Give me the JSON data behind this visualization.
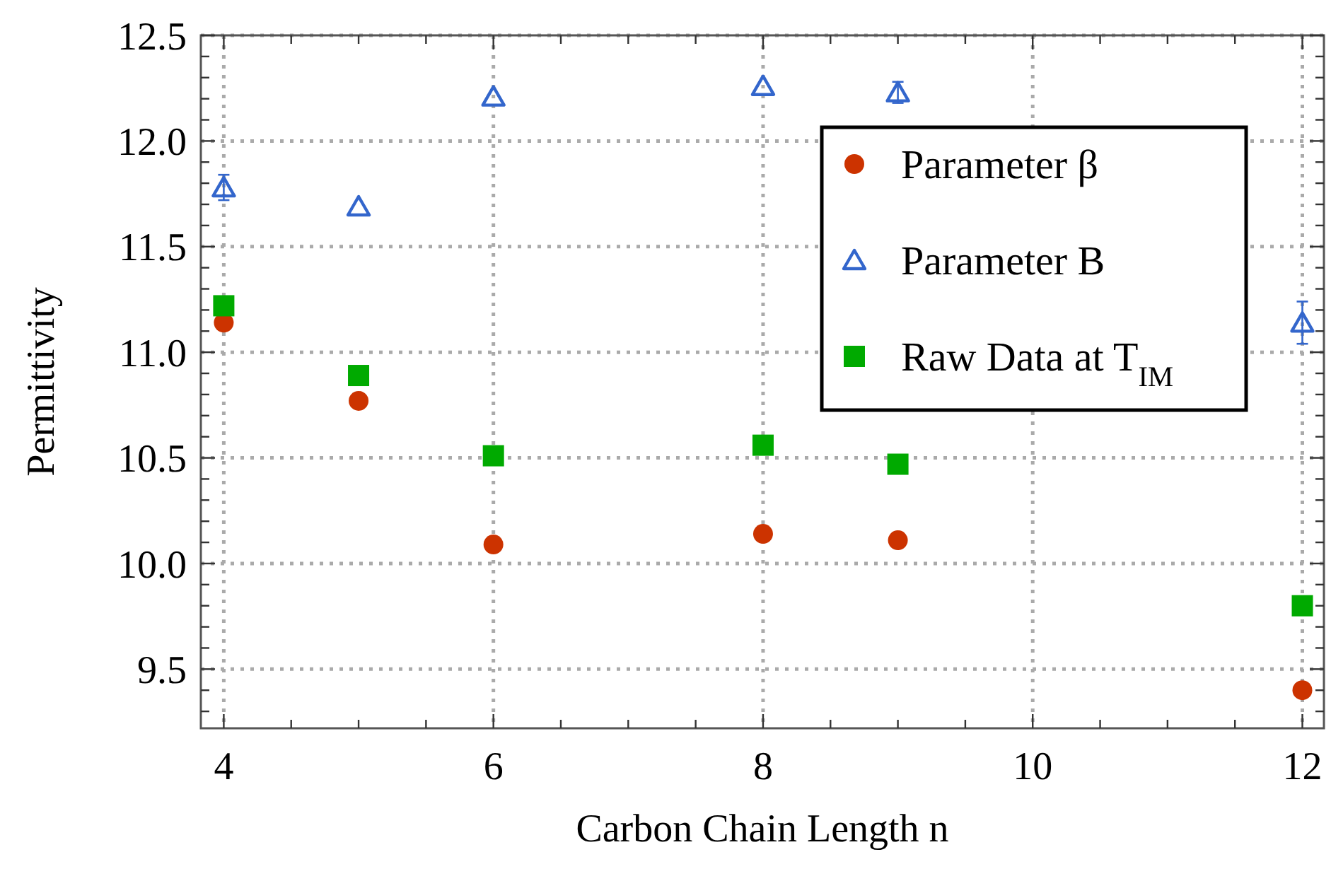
{
  "chart_data": {
    "type": "scatter",
    "xlabel": "Carbon Chain Length n",
    "ylabel": "Permittivity",
    "x": [
      4,
      5,
      6,
      8,
      9,
      12
    ],
    "series": [
      {
        "name": "Parameter β",
        "color": "#cc3300",
        "marker": "circle",
        "values": [
          11.14,
          10.77,
          10.09,
          10.14,
          10.11,
          9.4
        ]
      },
      {
        "name": "Parameter B",
        "color": "#3366cc",
        "marker": "triangle",
        "values": [
          11.78,
          11.69,
          12.21,
          12.26,
          12.23,
          11.14
        ],
        "errors": [
          0.06,
          null,
          null,
          null,
          0.05,
          0.1
        ]
      },
      {
        "name": "Raw Data at T$_{IM}$",
        "color": "#00aa00",
        "marker": "square",
        "values": [
          11.22,
          10.89,
          10.51,
          10.56,
          10.47,
          9.8
        ]
      }
    ],
    "xlim": [
      3.83,
      12.16
    ],
    "xticks": [
      4,
      6,
      8,
      10,
      12
    ],
    "ylim": [
      9.22,
      12.5
    ],
    "yticks": [
      {
        "value": 9.5,
        "label": "9.5"
      },
      {
        "value": 10,
        "label": "10.0"
      },
      {
        "value": 10.5,
        "label": "10.5"
      },
      {
        "value": 11,
        "label": "11.0"
      },
      {
        "value": 11.5,
        "label": "11.5"
      },
      {
        "value": 12,
        "label": "12.0"
      },
      {
        "value": 12.5,
        "label": "12.5"
      }
    ],
    "grid": true,
    "legend": "top right"
  }
}
